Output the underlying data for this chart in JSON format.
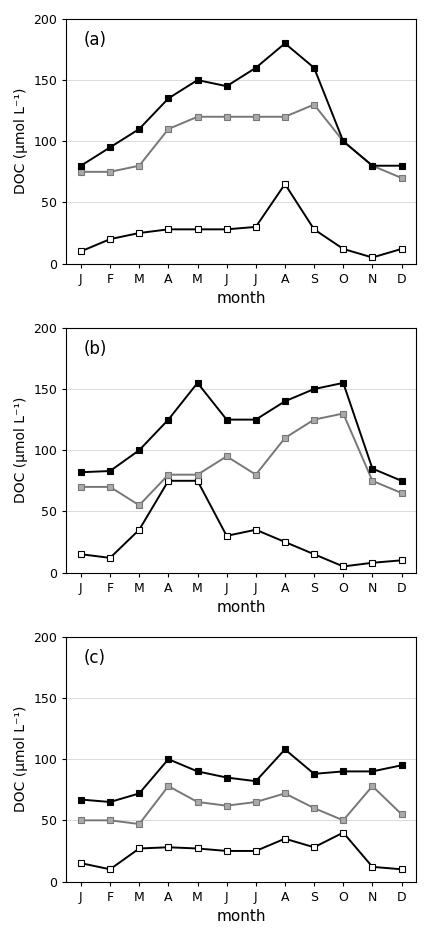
{
  "months": [
    "J",
    "F",
    "M",
    "A",
    "M",
    "J",
    "J",
    "A",
    "S",
    "O",
    "N",
    "D"
  ],
  "panel_labels": [
    "(a)",
    "(b)",
    "(c)"
  ],
  "panels": [
    {
      "black": [
        80,
        95,
        110,
        135,
        150,
        145,
        160,
        180,
        160,
        100,
        80,
        80
      ],
      "gray": [
        75,
        75,
        80,
        110,
        120,
        120,
        120,
        120,
        130,
        100,
        80,
        70
      ],
      "white": [
        10,
        20,
        25,
        28,
        28,
        28,
        30,
        65,
        28,
        12,
        5,
        12
      ]
    },
    {
      "black": [
        82,
        83,
        100,
        125,
        155,
        125,
        125,
        140,
        150,
        155,
        85,
        75
      ],
      "gray": [
        70,
        70,
        55,
        80,
        80,
        95,
        80,
        110,
        125,
        130,
        75,
        65
      ],
      "white": [
        15,
        12,
        35,
        75,
        75,
        30,
        35,
        25,
        15,
        5,
        8,
        10
      ]
    },
    {
      "black": [
        67,
        65,
        72,
        100,
        90,
        85,
        82,
        108,
        88,
        90,
        90,
        95
      ],
      "gray": [
        50,
        50,
        47,
        78,
        65,
        62,
        65,
        72,
        60,
        50,
        78,
        55
      ],
      "white": [
        15,
        10,
        27,
        28,
        27,
        25,
        25,
        35,
        28,
        40,
        12,
        10
      ]
    }
  ],
  "ylim": [
    0,
    200
  ],
  "yticks": [
    0,
    50,
    100,
    150,
    200
  ],
  "ylabel": "DOC (μmol L⁻¹)",
  "xlabel": "month",
  "black_color": "#000000",
  "gray_color": "#aaaaaa",
  "white_color": "#ffffff",
  "line_color_gray": "#777777",
  "marker": "s",
  "markersize": 5,
  "linewidth": 1.4,
  "label_fontsize": 11,
  "tick_fontsize": 9,
  "ylabel_fontsize": 10,
  "xlabel_fontsize": 11,
  "panel_fontsize": 12
}
